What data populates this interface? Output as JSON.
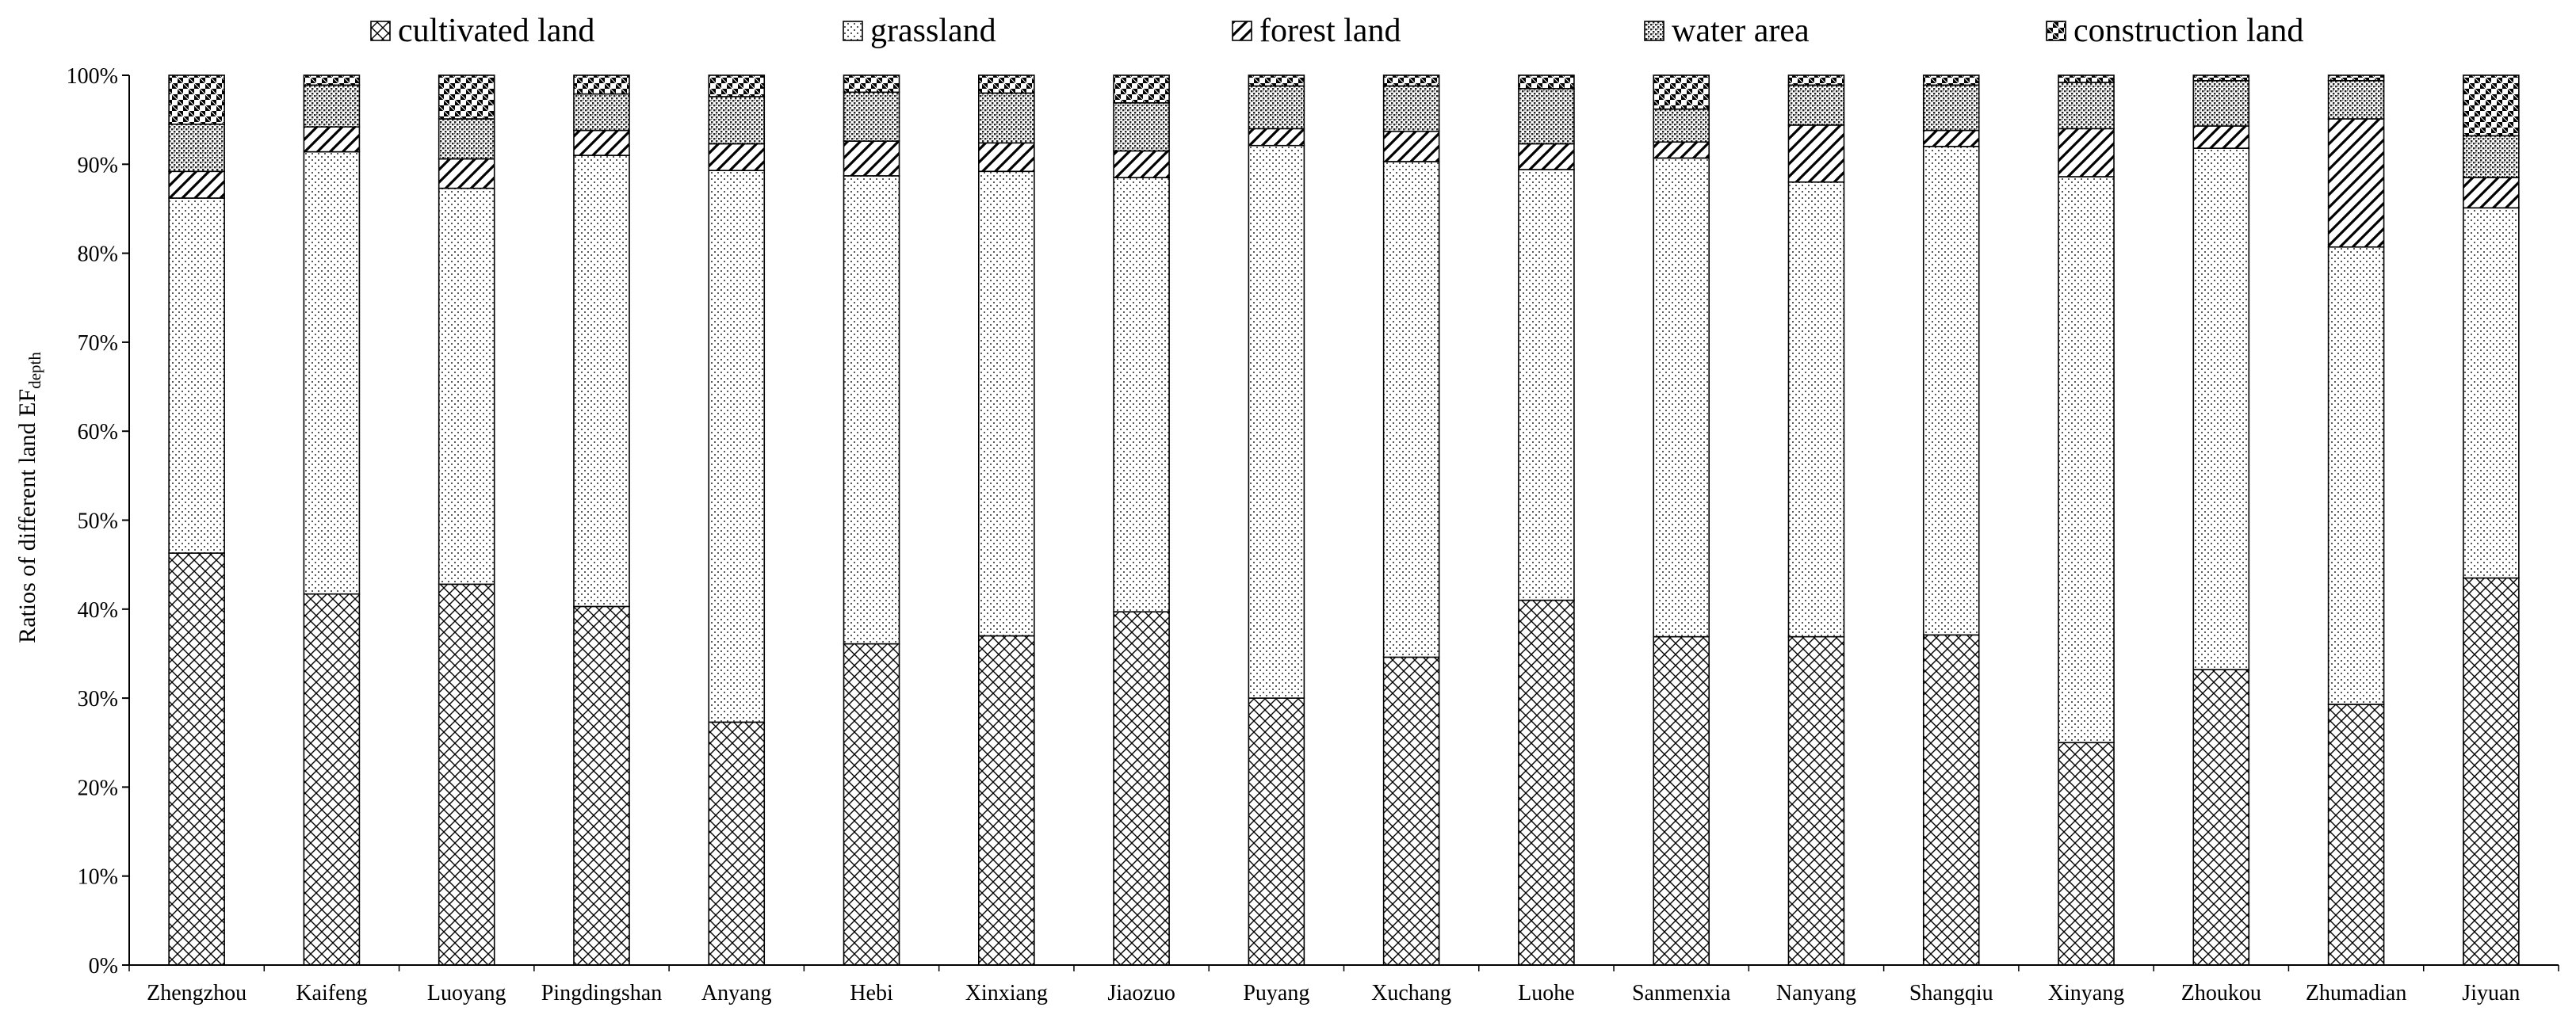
{
  "chart_data": {
    "type": "bar",
    "stacked": true,
    "ylabel_main": "Ratios of different  land EF",
    "ylabel_sub": "depth",
    "xlabel": "",
    "ylim": [
      0,
      100
    ],
    "yticks": [
      "0%",
      "10%",
      "20%",
      "30%",
      "40%",
      "50%",
      "60%",
      "70%",
      "80%",
      "90%",
      "100%"
    ],
    "grid": false,
    "legend_position": "top",
    "categories": [
      "Zhengzhou",
      "Kaifeng",
      "Luoyang",
      "Pingdingshan",
      "Anyang",
      "Hebi",
      "Xinxiang",
      "Jiaozuo",
      "Puyang",
      "Xuchang",
      "Luohe",
      "Sanmenxia",
      "Nanyang",
      "Shangqiu",
      "Xinyang",
      "Zhoukou",
      "Zhumadian",
      "Jiyuan"
    ],
    "series": [
      {
        "name": "cultivated land",
        "pattern": "crosshatch-diamond",
        "values": [
          46.3,
          41.7,
          42.8,
          40.3,
          27.3,
          36.1,
          37.0,
          39.7,
          30.0,
          34.6,
          41.0,
          36.9,
          36.9,
          37.1,
          25.0,
          33.2,
          29.3,
          43.5
        ]
      },
      {
        "name": "grassland",
        "pattern": "fine-dots",
        "values": [
          39.9,
          49.7,
          44.5,
          50.7,
          62.0,
          52.6,
          52.2,
          48.8,
          62.1,
          55.7,
          48.4,
          53.8,
          51.1,
          54.9,
          63.6,
          58.6,
          51.4,
          41.6
        ]
      },
      {
        "name": "forest land",
        "pattern": "diagonal-stripes",
        "values": [
          3.0,
          2.8,
          3.3,
          2.8,
          3.0,
          3.9,
          3.2,
          3.0,
          1.9,
          3.4,
          2.9,
          1.8,
          6.4,
          1.8,
          5.4,
          2.5,
          14.4,
          3.4
        ]
      },
      {
        "name": "water area",
        "pattern": "dense-dots",
        "values": [
          5.3,
          4.7,
          4.5,
          4.1,
          5.3,
          5.5,
          5.6,
          5.4,
          4.8,
          5.1,
          6.2,
          3.7,
          4.5,
          5.1,
          5.2,
          5.1,
          4.3,
          4.7
        ]
      },
      {
        "name": "construction land",
        "pattern": "checkerboard",
        "values": [
          5.5,
          1.1,
          4.9,
          2.1,
          2.4,
          1.9,
          2.0,
          3.1,
          1.2,
          1.2,
          1.5,
          3.8,
          1.1,
          1.1,
          0.8,
          0.6,
          0.6,
          6.8
        ]
      }
    ]
  }
}
